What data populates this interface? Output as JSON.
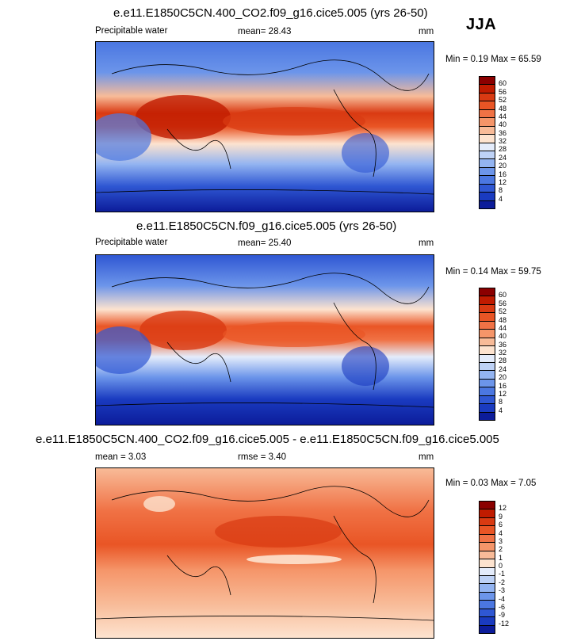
{
  "season": "JJA",
  "units": "mm",
  "panels": [
    {
      "title": "e.e11.E1850C5CN.400_CO2.f09_g16.cice5.005 (yrs 26-50)",
      "variable": "Precipitable water",
      "mean_text": "mean=  28.43",
      "minmax_text": "Min =  0.19 Max = 65.59",
      "levels": [
        "60",
        "56",
        "52",
        "48",
        "44",
        "40",
        "36",
        "32",
        "28",
        "24",
        "20",
        "16",
        "12",
        "8",
        "4"
      ],
      "colors": [
        "#8b0000",
        "#c01b00",
        "#d93a12",
        "#e95525",
        "#f07245",
        "#f59569",
        "#f8bb98",
        "#fde3cf",
        "#e4ecfb",
        "#bed2f6",
        "#93b4f1",
        "#6c95ea",
        "#4b77e1",
        "#2f57d3",
        "#1a3bc0",
        "#0c1c9a"
      ]
    },
    {
      "title": "e.e11.E1850C5CN.f09_g16.cice5.005 (yrs 26-50)",
      "variable": "Precipitable water",
      "mean_text": "mean=  25.40",
      "minmax_text": "Min =  0.14 Max = 59.75",
      "levels": [
        "60",
        "56",
        "52",
        "48",
        "44",
        "40",
        "36",
        "32",
        "28",
        "24",
        "20",
        "16",
        "12",
        "8",
        "4"
      ],
      "colors": [
        "#8b0000",
        "#c01b00",
        "#d93a12",
        "#e95525",
        "#f07245",
        "#f59569",
        "#f8bb98",
        "#fde3cf",
        "#e4ecfb",
        "#bed2f6",
        "#93b4f1",
        "#6c95ea",
        "#4b77e1",
        "#2f57d3",
        "#1a3bc0",
        "#0c1c9a"
      ]
    },
    {
      "title": "e.e11.E1850C5CN.400_CO2.f09_g16.cice5.005 - e.e11.E1850C5CN.f09_g16.cice5.005",
      "mean_text": "mean =   3.03",
      "rmse_text": "rmse =   3.40",
      "minmax_text": "Min =  0.03 Max =  7.05",
      "levels": [
        "12",
        "9",
        "6",
        "4",
        "3",
        "2",
        "1",
        "0",
        "-1",
        "-2",
        "-3",
        "-4",
        "-6",
        "-9",
        "-12"
      ],
      "colors": [
        "#8b0000",
        "#c01b00",
        "#d93a12",
        "#e95525",
        "#f07245",
        "#f59569",
        "#f8bb98",
        "#fde3cf",
        "#e4ecfb",
        "#bed2f6",
        "#93b4f1",
        "#6c95ea",
        "#4b77e1",
        "#2f57d3",
        "#1a3bc0",
        "#0c1c9a"
      ]
    }
  ]
}
